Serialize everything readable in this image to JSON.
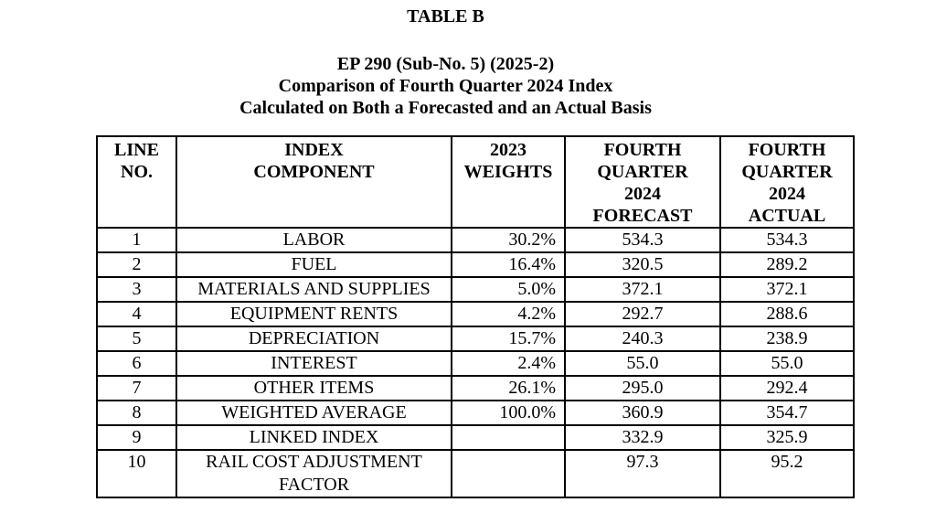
{
  "document": {
    "table_label": "TABLE B",
    "subtitle_lines": [
      "EP 290 (Sub-No. 5) (2025-2)",
      "Comparison of Fourth Quarter 2024 Index",
      "Calculated on Both a Forecasted and an Actual Basis"
    ]
  },
  "table": {
    "columns": [
      {
        "label": "LINE\nNO."
      },
      {
        "label": "INDEX\nCOMPONENT"
      },
      {
        "label": "2023\nWEIGHTS"
      },
      {
        "label": "FOURTH\nQUARTER\n2024\nFORECAST"
      },
      {
        "label": "FOURTH\nQUARTER\n2024\nACTUAL"
      }
    ],
    "rows": [
      {
        "line_no": "1",
        "component": "LABOR",
        "weight": "30.2%",
        "forecast": "534.3",
        "actual": "534.3"
      },
      {
        "line_no": "2",
        "component": "FUEL",
        "weight": "16.4%",
        "forecast": "320.5",
        "actual": "289.2"
      },
      {
        "line_no": "3",
        "component": "MATERIALS AND SUPPLIES",
        "weight": "5.0%",
        "forecast": "372.1",
        "actual": "372.1"
      },
      {
        "line_no": "4",
        "component": "EQUIPMENT RENTS",
        "weight": "4.2%",
        "forecast": "292.7",
        "actual": "288.6"
      },
      {
        "line_no": "5",
        "component": "DEPRECIATION",
        "weight": "15.7%",
        "forecast": "240.3",
        "actual": "238.9"
      },
      {
        "line_no": "6",
        "component": "INTEREST",
        "weight": "2.4%",
        "forecast": "55.0",
        "actual": "55.0"
      },
      {
        "line_no": "7",
        "component": "OTHER ITEMS",
        "weight": "26.1%",
        "forecast": "295.0",
        "actual": "292.4"
      },
      {
        "line_no": "8",
        "component": "WEIGHTED AVERAGE",
        "weight": "100.0%",
        "forecast": "360.9",
        "actual": "354.7"
      },
      {
        "line_no": "9",
        "component": "LINKED INDEX",
        "weight": "",
        "forecast": "332.9",
        "actual": "325.9"
      },
      {
        "line_no": "10",
        "component": "RAIL COST ADJUSTMENT FACTOR",
        "weight": "",
        "forecast": "97.3",
        "actual": "95.2"
      }
    ]
  },
  "colors": {
    "text": "#000000",
    "background": "#ffffff",
    "border": "#000000"
  }
}
